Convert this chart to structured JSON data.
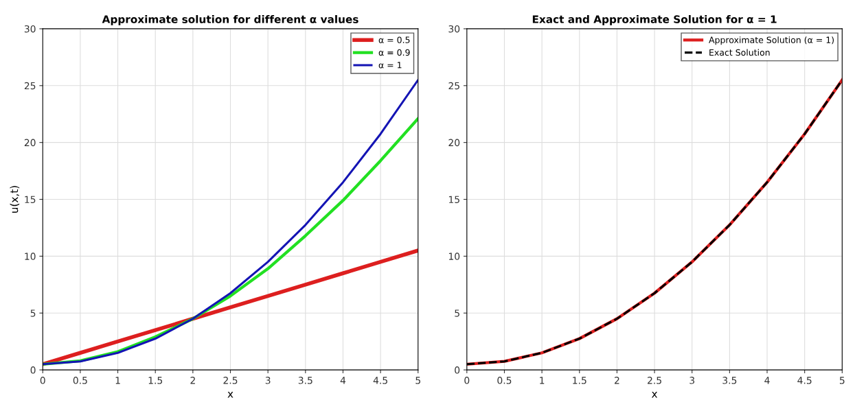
{
  "chart_data": [
    {
      "type": "line",
      "title": "Approximate solution for different α values",
      "xlabel": "x",
      "ylabel": "u(x,t)",
      "x": [
        0,
        0.5,
        1,
        1.5,
        2,
        2.5,
        3,
        3.5,
        4,
        4.5,
        5
      ],
      "series": [
        {
          "name": "α = 0.5",
          "color": "#dd1f1f",
          "values": [
            0.5,
            1.5,
            2.5,
            3.5,
            4.5,
            5.5,
            6.5,
            7.5,
            8.5,
            9.5,
            10.5
          ]
        },
        {
          "name": "α = 0.9",
          "color": "#22e022",
          "values": [
            0.5,
            0.8,
            1.6,
            2.9,
            4.5,
            6.5,
            8.9,
            11.8,
            14.9,
            18.4,
            22.1
          ]
        },
        {
          "name": "α = 1",
          "color": "#1414b4",
          "values": [
            0.5,
            0.75,
            1.5,
            2.75,
            4.5,
            6.75,
            9.5,
            12.75,
            16.5,
            20.75,
            25.5
          ]
        }
      ],
      "xlim": [
        0,
        5
      ],
      "ylim": [
        0,
        30
      ],
      "xticks": [
        0,
        0.5,
        1,
        1.5,
        2,
        2.5,
        3,
        3.5,
        4,
        4.5,
        5
      ],
      "yticks": [
        0,
        5,
        10,
        15,
        20,
        25,
        30
      ],
      "grid": true,
      "legend": "top right",
      "line_style": "solid"
    },
    {
      "type": "line",
      "title": "Exact and Approximate Solution for α = 1",
      "xlabel": "x",
      "x": [
        0,
        0.5,
        1,
        1.5,
        2,
        2.5,
        3,
        3.5,
        4,
        4.5,
        5
      ],
      "series": [
        {
          "name": "Approximate Solution (α = 1)",
          "color": "#dd1f1f",
          "values": [
            0.5,
            0.75,
            1.5,
            2.75,
            4.5,
            6.75,
            9.5,
            12.75,
            16.5,
            20.75,
            25.5
          ]
        },
        {
          "name": "Exact Solution",
          "color": "#000000",
          "line_style": "dashed",
          "values": [
            0.5,
            0.75,
            1.5,
            2.75,
            4.5,
            6.75,
            9.5,
            12.75,
            16.5,
            20.75,
            25.5
          ]
        }
      ],
      "xlim": [
        0,
        5
      ],
      "ylim": [
        0,
        30
      ],
      "xticks": [
        0,
        0.5,
        1,
        1.5,
        2,
        2.5,
        3,
        3.5,
        4,
        4.5,
        5
      ],
      "yticks": [
        0,
        5,
        10,
        15,
        20,
        25,
        30
      ],
      "grid": true,
      "legend": "top right",
      "line_style": "solid"
    }
  ]
}
